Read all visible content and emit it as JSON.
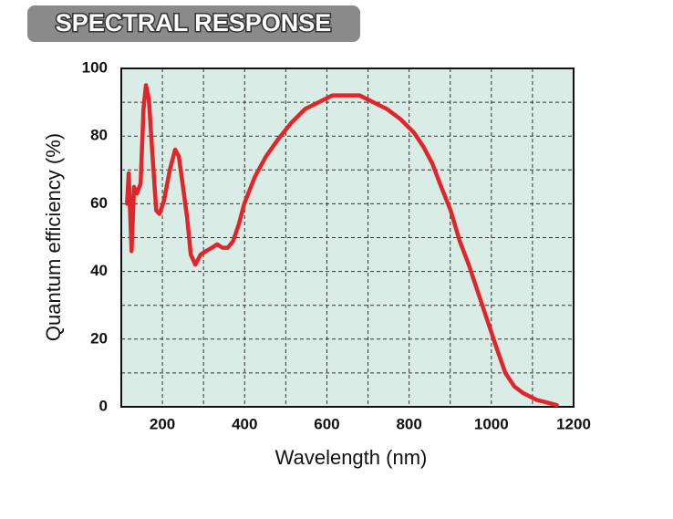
{
  "chart_data": {
    "type": "line",
    "title": "SPECTRAL RESPONSE",
    "x_label": "Wavelength (nm)",
    "y_label": "Quantum efficiency (%)",
    "x": [
      114,
      118,
      125,
      131,
      138,
      147,
      154,
      160,
      167,
      176,
      185,
      193,
      204,
      218,
      231,
      240,
      249,
      260,
      269,
      280,
      293,
      306,
      320,
      333,
      346,
      359,
      372,
      386,
      399,
      425,
      452,
      481,
      514,
      547,
      580,
      613,
      646,
      680,
      713,
      746,
      779,
      812,
      834,
      856,
      878,
      901,
      923,
      945,
      967,
      989,
      1011,
      1034,
      1056,
      1078,
      1111,
      1144,
      1159
    ],
    "series": [
      {
        "name": "Quantum efficiency",
        "color": "#e0262b",
        "values": [
          60,
          69,
          46,
          65,
          63,
          66,
          88,
          95,
          91,
          74,
          58,
          57,
          61,
          70,
          76,
          74,
          66,
          56,
          45,
          42,
          45,
          46,
          47,
          48,
          47,
          47,
          49,
          54,
          60,
          68,
          74,
          79,
          84,
          88,
          90,
          92,
          92,
          92,
          90,
          88,
          85,
          81,
          77,
          72,
          65,
          58,
          49,
          42,
          34,
          26,
          18,
          10,
          6,
          4,
          2,
          1,
          0.5
        ]
      }
    ],
    "xlim": [
      100,
      1200
    ],
    "xticks": [
      200,
      400,
      600,
      800,
      1000,
      1200
    ],
    "xgrid": [
      200,
      300,
      400,
      500,
      600,
      700,
      800,
      900,
      1000,
      1100
    ],
    "ylim": [
      0,
      100
    ],
    "yticks": [
      0,
      20,
      40,
      60,
      80,
      100
    ],
    "ygrid": [
      10,
      20,
      30,
      40,
      50,
      60,
      70,
      80,
      90
    ],
    "grid": true
  }
}
